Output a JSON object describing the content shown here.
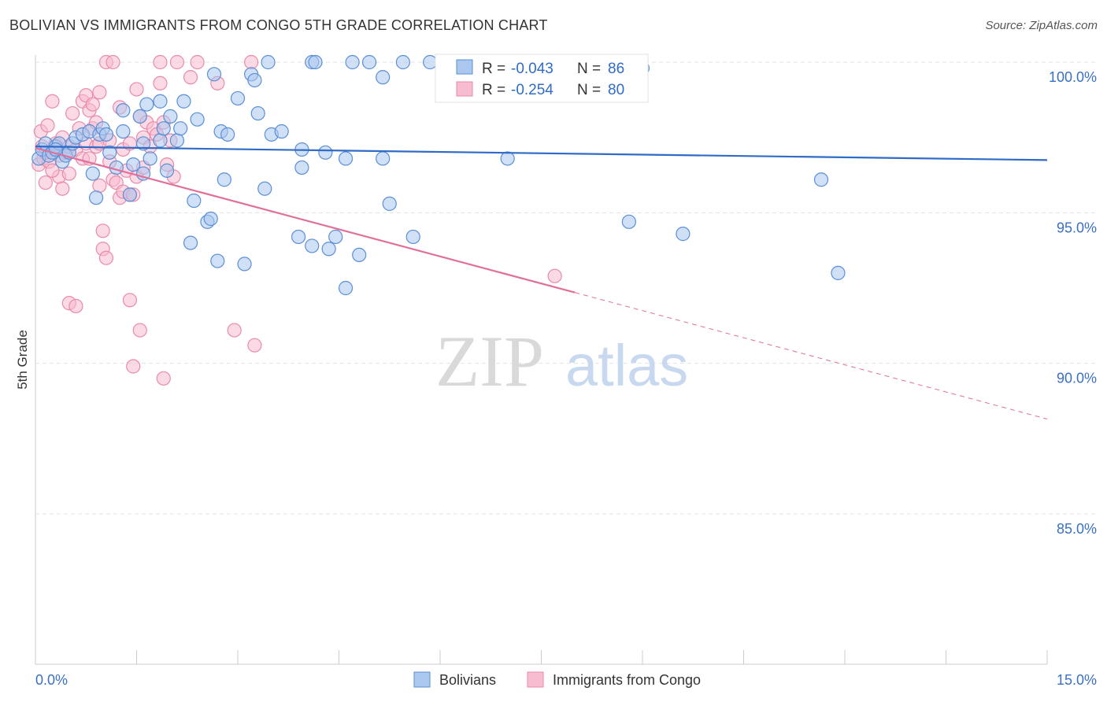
{
  "header": {
    "title": "BOLIVIAN VS IMMIGRANTS FROM CONGO 5TH GRADE CORRELATION CHART",
    "source": "Source: ZipAtlas.com"
  },
  "watermark": {
    "zip": "ZIP",
    "atlas": "atlas"
  },
  "colors": {
    "blue_fill": "#a9c7ef",
    "blue_stroke": "#5b8fd6",
    "blue_line": "#2f6bc7",
    "pink_fill": "#f7bcd0",
    "pink_stroke": "#e98aab",
    "pink_line": "#e0709a",
    "grid": "#dfe3ea",
    "tick_text": "#3a70c2"
  },
  "stats_legend": {
    "rows": [
      {
        "r_label": "R =",
        "r_value": "-0.043",
        "n_label": "N =",
        "n_value": "86"
      },
      {
        "r_label": "R =",
        "r_value": "-0.254",
        "n_label": "N =",
        "n_value": "80"
      }
    ]
  },
  "bottom_legend": {
    "items": [
      {
        "label": "Bolivians"
      },
      {
        "label": "Immigrants from Congo"
      }
    ]
  },
  "chart_data": {
    "type": "scatter",
    "title": "BOLIVIAN VS IMMIGRANTS FROM CONGO 5TH GRADE CORRELATION CHART",
    "xlabel": "",
    "ylabel": "5th Grade",
    "xlim": [
      0,
      15
    ],
    "ylim": [
      80.5,
      100.8
    ],
    "x_tick_labels": [
      "0.0%",
      "15.0%"
    ],
    "y_ticks": [
      85,
      90,
      95,
      100
    ],
    "y_tick_labels": [
      "85.0%",
      "90.0%",
      "95.0%",
      "100.0%"
    ],
    "grid": true,
    "series": [
      {
        "name": "Bolivians",
        "color": "#a9c7ef",
        "points": [
          [
            0.05,
            96.8
          ],
          [
            0.1,
            97.1
          ],
          [
            0.15,
            97.3
          ],
          [
            0.2,
            96.9
          ],
          [
            0.25,
            97.0
          ],
          [
            0.3,
            97.2
          ],
          [
            0.35,
            97.3
          ],
          [
            0.4,
            96.7
          ],
          [
            0.45,
            96.9
          ],
          [
            0.5,
            97.0
          ],
          [
            0.55,
            97.3
          ],
          [
            0.6,
            97.5
          ],
          [
            0.7,
            97.6
          ],
          [
            0.8,
            97.7
          ],
          [
            0.85,
            96.3
          ],
          [
            0.9,
            95.5
          ],
          [
            0.95,
            97.6
          ],
          [
            1.0,
            97.8
          ],
          [
            1.05,
            97.6
          ],
          [
            1.1,
            97.0
          ],
          [
            1.2,
            96.5
          ],
          [
            1.3,
            97.7
          ],
          [
            1.3,
            98.4
          ],
          [
            1.4,
            95.6
          ],
          [
            1.45,
            96.6
          ],
          [
            1.55,
            98.2
          ],
          [
            1.6,
            97.3
          ],
          [
            1.6,
            96.3
          ],
          [
            1.65,
            98.6
          ],
          [
            1.7,
            96.8
          ],
          [
            1.85,
            98.7
          ],
          [
            1.85,
            97.4
          ],
          [
            1.9,
            97.8
          ],
          [
            1.95,
            96.4
          ],
          [
            2.0,
            98.2
          ],
          [
            2.1,
            97.4
          ],
          [
            2.15,
            97.8
          ],
          [
            2.2,
            98.7
          ],
          [
            2.3,
            94.0
          ],
          [
            2.35,
            95.4
          ],
          [
            2.4,
            98.1
          ],
          [
            2.55,
            94.7
          ],
          [
            2.6,
            94.8
          ],
          [
            2.65,
            99.6
          ],
          [
            2.7,
            93.4
          ],
          [
            2.75,
            97.7
          ],
          [
            2.8,
            96.1
          ],
          [
            2.85,
            97.6
          ],
          [
            3.0,
            98.8
          ],
          [
            3.1,
            93.3
          ],
          [
            3.2,
            99.6
          ],
          [
            3.25,
            99.4
          ],
          [
            3.3,
            98.3
          ],
          [
            3.4,
            95.8
          ],
          [
            3.45,
            100.0
          ],
          [
            3.5,
            97.6
          ],
          [
            3.65,
            97.7
          ],
          [
            3.9,
            94.2
          ],
          [
            3.95,
            97.1
          ],
          [
            3.95,
            96.5
          ],
          [
            4.1,
            93.9
          ],
          [
            4.1,
            100.0
          ],
          [
            4.15,
            100.0
          ],
          [
            4.3,
            97.0
          ],
          [
            4.35,
            93.8
          ],
          [
            4.45,
            94.2
          ],
          [
            4.6,
            96.8
          ],
          [
            4.6,
            92.5
          ],
          [
            4.7,
            100.0
          ],
          [
            4.8,
            93.6
          ],
          [
            4.95,
            100.0
          ],
          [
            5.15,
            96.8
          ],
          [
            5.15,
            99.5
          ],
          [
            5.25,
            95.3
          ],
          [
            5.45,
            100.0
          ],
          [
            5.6,
            94.2
          ],
          [
            5.85,
            100.0
          ],
          [
            6.05,
            99.9
          ],
          [
            7.0,
            96.8
          ],
          [
            8.6,
            100.0
          ],
          [
            8.8,
            94.7
          ],
          [
            9.0,
            99.8
          ],
          [
            9.6,
            94.3
          ],
          [
            11.65,
            96.1
          ],
          [
            11.9,
            93.0
          ],
          [
            0.3,
            97.1
          ]
        ]
      },
      {
        "name": "Immigrants from Congo",
        "color": "#f7bcd0",
        "points": [
          [
            0.05,
            96.6
          ],
          [
            0.08,
            97.7
          ],
          [
            0.1,
            97.2
          ],
          [
            0.12,
            96.8
          ],
          [
            0.15,
            96.0
          ],
          [
            0.18,
            97.9
          ],
          [
            0.2,
            96.7
          ],
          [
            0.25,
            98.7
          ],
          [
            0.3,
            97.3
          ],
          [
            0.35,
            96.9
          ],
          [
            0.35,
            96.2
          ],
          [
            0.4,
            97.5
          ],
          [
            0.4,
            95.8
          ],
          [
            0.45,
            97.0
          ],
          [
            0.5,
            97.2
          ],
          [
            0.5,
            96.3
          ],
          [
            0.5,
            92.0
          ],
          [
            0.55,
            98.3
          ],
          [
            0.6,
            97.1
          ],
          [
            0.6,
            91.9
          ],
          [
            0.65,
            97.8
          ],
          [
            0.7,
            96.8
          ],
          [
            0.7,
            98.7
          ],
          [
            0.75,
            97.3
          ],
          [
            0.75,
            98.9
          ],
          [
            0.8,
            96.8
          ],
          [
            0.8,
            98.4
          ],
          [
            0.85,
            97.8
          ],
          [
            0.85,
            98.6
          ],
          [
            0.9,
            97.2
          ],
          [
            0.9,
            98.0
          ],
          [
            0.95,
            97.3
          ],
          [
            0.95,
            95.9
          ],
          [
            1.0,
            93.8
          ],
          [
            1.0,
            94.4
          ],
          [
            1.05,
            93.5
          ],
          [
            1.1,
            97.4
          ],
          [
            1.1,
            96.7
          ],
          [
            1.15,
            96.1
          ],
          [
            1.2,
            96.0
          ],
          [
            1.25,
            98.5
          ],
          [
            1.25,
            95.5
          ],
          [
            1.3,
            97.1
          ],
          [
            1.3,
            95.7
          ],
          [
            1.35,
            96.4
          ],
          [
            1.4,
            97.3
          ],
          [
            1.4,
            95.6
          ],
          [
            1.45,
            95.6
          ],
          [
            1.5,
            99.1
          ],
          [
            1.5,
            96.2
          ],
          [
            1.55,
            98.2
          ],
          [
            1.6,
            97.5
          ],
          [
            1.6,
            96.5
          ],
          [
            1.65,
            98.0
          ],
          [
            1.7,
            97.2
          ],
          [
            1.75,
            97.8
          ],
          [
            1.8,
            97.6
          ],
          [
            1.85,
            99.3
          ],
          [
            1.9,
            98.0
          ],
          [
            1.95,
            96.6
          ],
          [
            2.0,
            97.4
          ],
          [
            2.05,
            96.2
          ],
          [
            2.1,
            100.0
          ],
          [
            2.4,
            100.0
          ],
          [
            2.7,
            99.3
          ],
          [
            2.95,
            91.1
          ],
          [
            3.2,
            100.0
          ],
          [
            3.25,
            90.6
          ],
          [
            1.05,
            100.0
          ],
          [
            1.4,
            92.1
          ],
          [
            1.45,
            89.9
          ],
          [
            1.55,
            91.1
          ],
          [
            1.9,
            89.5
          ],
          [
            1.85,
            100.0
          ],
          [
            2.3,
            99.5
          ],
          [
            7.7,
            92.9
          ],
          [
            0.95,
            99.0
          ],
          [
            0.15,
            97.0
          ],
          [
            0.25,
            96.4
          ],
          [
            1.15,
            100.0
          ]
        ]
      }
    ],
    "trend_lines": [
      {
        "series": "Bolivians",
        "x": [
          0,
          15
        ],
        "y": [
          97.2,
          96.75
        ],
        "style": "solid"
      },
      {
        "series": "Immigrants from Congo",
        "x": [
          0,
          8.0
        ],
        "y": [
          97.15,
          92.35
        ],
        "style": "solid"
      },
      {
        "series": "Immigrants from Congo",
        "x": [
          8.0,
          15
        ],
        "y": [
          92.35,
          88.15
        ],
        "style": "dashed"
      }
    ]
  }
}
